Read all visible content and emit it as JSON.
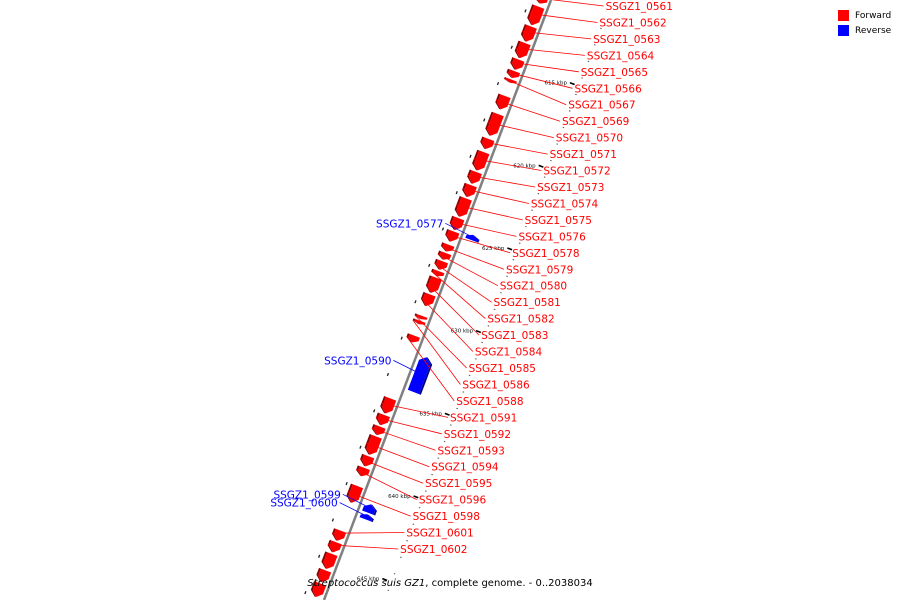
{
  "legend": {
    "items": [
      {
        "label": "Forward",
        "color": "#ff0000"
      },
      {
        "label": "Reverse",
        "color": "#0000ff"
      }
    ]
  },
  "caption": {
    "species": "Streptococcus suis GZ1",
    "rest": ", complete genome. - 0..2038034"
  },
  "colors": {
    "forward": "#ff0000",
    "reverse": "#0000ff",
    "backbone": "#808080"
  },
  "ticks": [
    {
      "label": "615 kbp",
      "pos": 615
    },
    {
      "label": "620 kbp",
      "pos": 620
    },
    {
      "label": "625 kbp",
      "pos": 625
    },
    {
      "label": "630 kbp",
      "pos": 630
    },
    {
      "label": "635 kbp",
      "pos": 635
    },
    {
      "label": "640 kbp",
      "pos": 640
    },
    {
      "label": "645 kbp",
      "pos": 645
    }
  ],
  "genes": [
    {
      "id": "SSGZ1_0561",
      "strand": "forward",
      "start": 611.0,
      "end": 611.4
    },
    {
      "id": "SSGZ1_0562",
      "strand": "forward",
      "start": 611.6,
      "end": 612.7
    },
    {
      "id": "SSGZ1_0563",
      "strand": "forward",
      "start": 612.8,
      "end": 613.7
    },
    {
      "id": "SSGZ1_0564",
      "strand": "forward",
      "start": 613.8,
      "end": 614.7
    },
    {
      "id": "SSGZ1_0565",
      "strand": "forward",
      "start": 614.8,
      "end": 615.4
    },
    {
      "id": "SSGZ1_0566",
      "strand": "forward",
      "start": 615.5,
      "end": 615.9
    },
    {
      "id": "SSGZ1_0567",
      "strand": "forward",
      "start": 616.0,
      "end": 616.2
    },
    {
      "id": "SSGZ1_0569",
      "strand": "forward",
      "start": 617.0,
      "end": 617.8
    },
    {
      "id": "SSGZ1_0570",
      "strand": "forward",
      "start": 618.1,
      "end": 619.4
    },
    {
      "id": "SSGZ1_0571",
      "strand": "forward",
      "start": 619.6,
      "end": 620.2
    },
    {
      "id": "SSGZ1_0572",
      "strand": "forward",
      "start": 620.4,
      "end": 621.5
    },
    {
      "id": "SSGZ1_0573",
      "strand": "forward",
      "start": 621.6,
      "end": 622.3
    },
    {
      "id": "SSGZ1_0574",
      "strand": "forward",
      "start": 622.4,
      "end": 623.1
    },
    {
      "id": "SSGZ1_0575",
      "strand": "forward",
      "start": 623.2,
      "end": 624.3
    },
    {
      "id": "SSGZ1_0576",
      "strand": "forward",
      "start": 624.4,
      "end": 625.1
    },
    {
      "id": "SSGZ1_0577",
      "strand": "reverse",
      "start": 625.0,
      "end": 625.3
    },
    {
      "id": "SSGZ1_0578",
      "strand": "forward",
      "start": 625.2,
      "end": 625.8
    },
    {
      "id": "SSGZ1_0579",
      "strand": "forward",
      "start": 626.0,
      "end": 626.4
    },
    {
      "id": "SSGZ1_0580",
      "strand": "forward",
      "start": 626.5,
      "end": 626.9
    },
    {
      "id": "SSGZ1_0581",
      "strand": "forward",
      "start": 627.0,
      "end": 627.5
    },
    {
      "id": "SSGZ1_0582",
      "strand": "forward",
      "start": 627.6,
      "end": 627.9
    },
    {
      "id": "SSGZ1_0583",
      "strand": "forward",
      "start": 628.0,
      "end": 628.9
    },
    {
      "id": "SSGZ1_0584",
      "strand": "forward",
      "start": 629.0,
      "end": 629.7
    },
    {
      "id": "SSGZ1_0585",
      "strand": "forward",
      "start": 630.3,
      "end": 630.5
    },
    {
      "id": "SSGZ1_0586",
      "strand": "forward",
      "start": 630.6,
      "end": 630.8
    },
    {
      "id": "SSGZ1_0588",
      "strand": "forward",
      "start": 631.5,
      "end": 631.9
    },
    {
      "id": "SSGZ1_0590",
      "strand": "reverse",
      "start": 632.4,
      "end": 634.5
    },
    {
      "id": "SSGZ1_0591",
      "strand": "forward",
      "start": 635.3,
      "end": 636.2
    },
    {
      "id": "SSGZ1_0592",
      "strand": "forward",
      "start": 636.3,
      "end": 636.9
    },
    {
      "id": "SSGZ1_0593",
      "strand": "forward",
      "start": 637.0,
      "end": 637.5
    },
    {
      "id": "SSGZ1_0594",
      "strand": "forward",
      "start": 637.6,
      "end": 638.7
    },
    {
      "id": "SSGZ1_0595",
      "strand": "forward",
      "start": 638.8,
      "end": 639.4
    },
    {
      "id": "SSGZ1_0596",
      "strand": "forward",
      "start": 639.5,
      "end": 640.0
    },
    {
      "id": "SSGZ1_0598",
      "strand": "forward",
      "start": 640.6,
      "end": 641.6
    },
    {
      "id": "SSGZ1_0599",
      "strand": "reverse",
      "start": 641.3,
      "end": 641.8
    },
    {
      "id": "SSGZ1_0600",
      "strand": "reverse",
      "start": 641.9,
      "end": 642.2
    },
    {
      "id": "SSGZ1_0601",
      "strand": "forward",
      "start": 643.3,
      "end": 643.9
    },
    {
      "id": "SSGZ1_0602",
      "strand": "forward",
      "start": 644.0,
      "end": 644.6
    },
    {
      "id": "",
      "strand": "forward",
      "start": 644.7,
      "end": 645.6
    },
    {
      "id": "",
      "strand": "forward",
      "start": 645.7,
      "end": 646.4
    },
    {
      "id": "",
      "strand": "forward",
      "start": 646.5,
      "end": 647.3
    }
  ]
}
